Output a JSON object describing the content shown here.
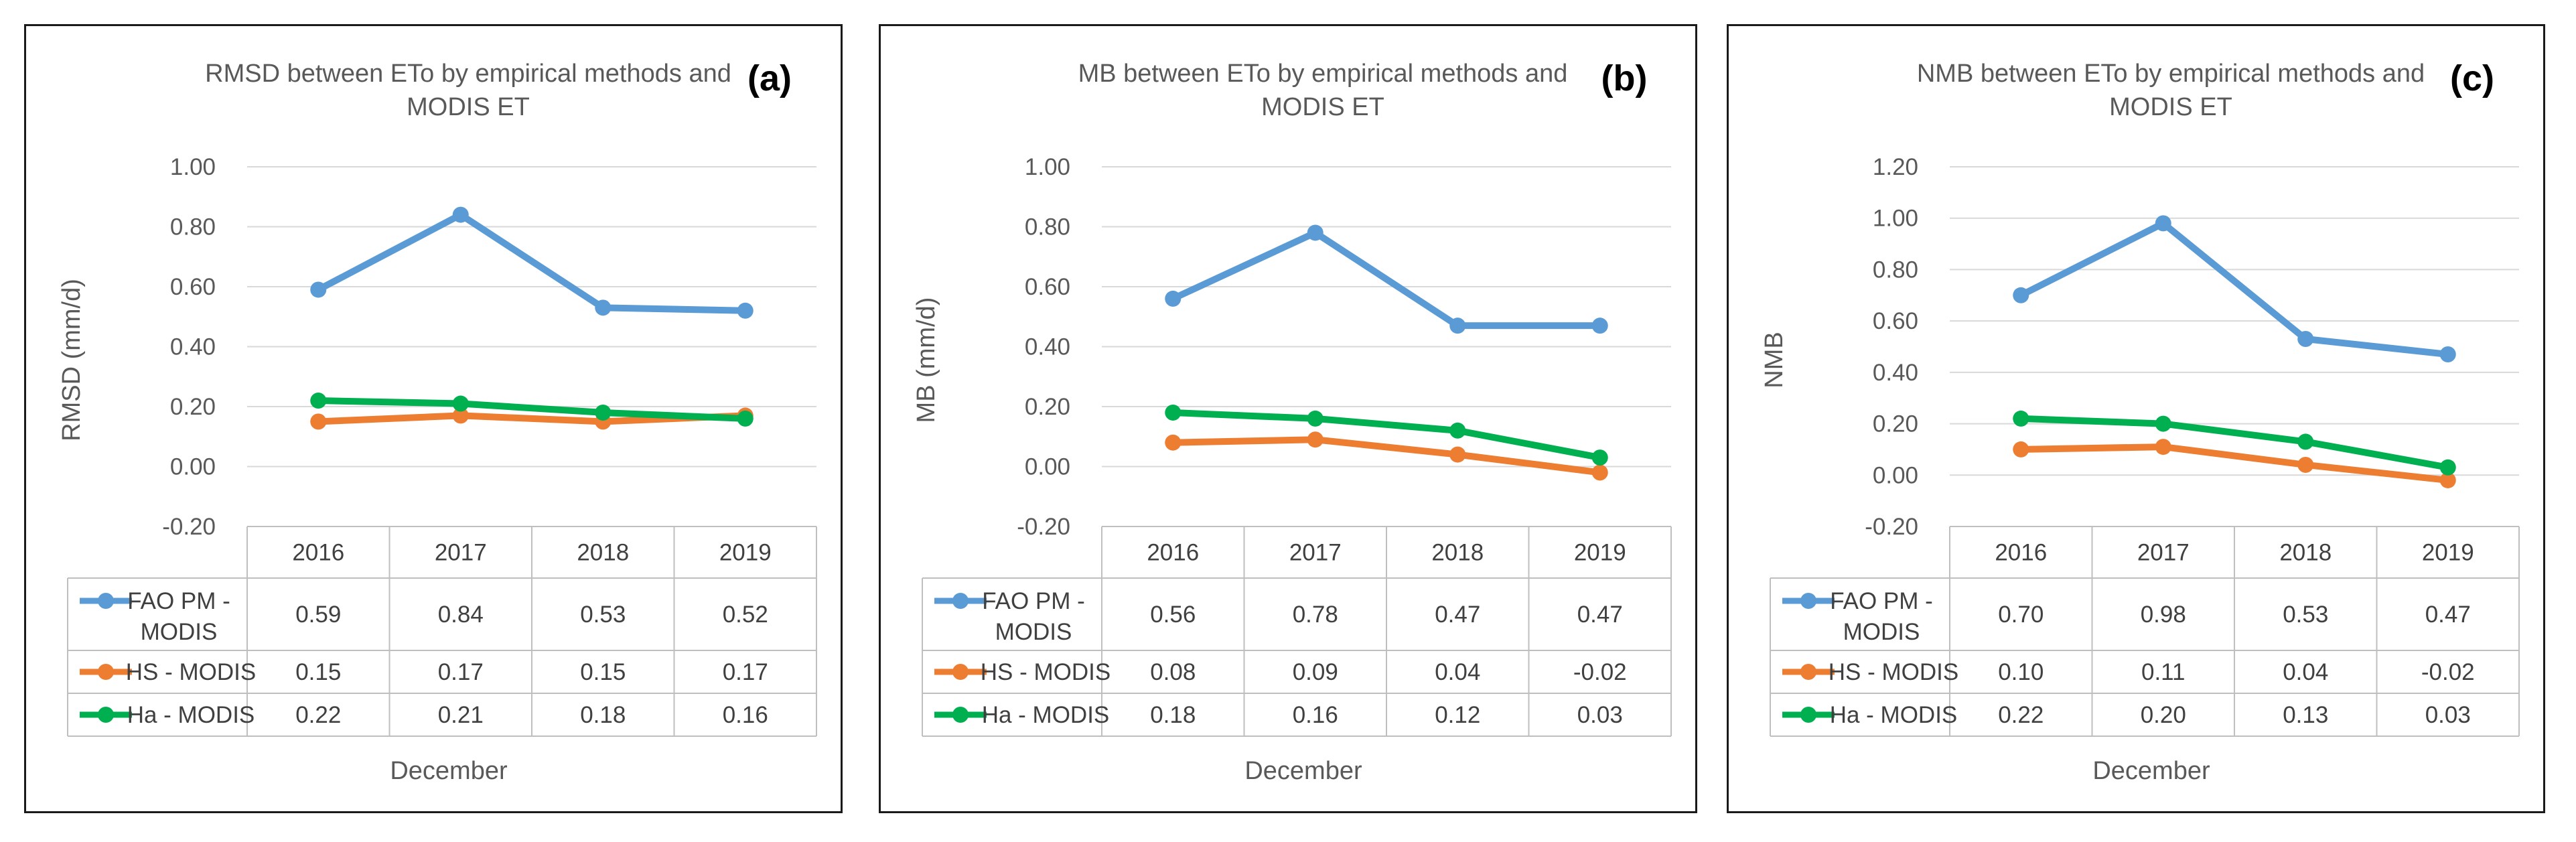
{
  "chart_data": [
    {
      "type": "line",
      "panel_label": "(a)",
      "title_lines": [
        "RMSD between ETo by empirical methods and",
        "MODIS ET"
      ],
      "ylabel": "RMSD (mm/d)",
      "xlabel": "December",
      "categories": [
        "2016",
        "2017",
        "2018",
        "2019"
      ],
      "yticks": [
        "1.00",
        "0.80",
        "0.60",
        "0.40",
        "0.20",
        "0.00",
        "-0.20"
      ],
      "ylim": [
        -0.2,
        1.0
      ],
      "grid": true,
      "series": [
        {
          "name_lines": [
            "FAO PM -",
            "MODIS"
          ],
          "color": "#5B9BD5",
          "values": [
            0.59,
            0.84,
            0.53,
            0.52
          ],
          "labels": [
            "0.59",
            "0.84",
            "0.53",
            "0.52"
          ]
        },
        {
          "name_lines": [
            "HS - MODIS"
          ],
          "color": "#ED7D31",
          "values": [
            0.15,
            0.17,
            0.15,
            0.17
          ],
          "labels": [
            "0.15",
            "0.17",
            "0.15",
            "0.17"
          ]
        },
        {
          "name_lines": [
            "Ha - MODIS"
          ],
          "color": "#00B050",
          "values": [
            0.22,
            0.21,
            0.18,
            0.16
          ],
          "labels": [
            "0.22",
            "0.21",
            "0.18",
            "0.16"
          ]
        }
      ]
    },
    {
      "type": "line",
      "panel_label": "(b)",
      "title_lines": [
        "MB between ETo by empirical methods and",
        "MODIS ET"
      ],
      "ylabel": "MB (mm/d)",
      "xlabel": "December",
      "categories": [
        "2016",
        "2017",
        "2018",
        "2019"
      ],
      "yticks": [
        "1.00",
        "0.80",
        "0.60",
        "0.40",
        "0.20",
        "0.00",
        "-0.20"
      ],
      "ylim": [
        -0.2,
        1.0
      ],
      "grid": true,
      "series": [
        {
          "name_lines": [
            "FAO PM -",
            "MODIS"
          ],
          "color": "#5B9BD5",
          "values": [
            0.56,
            0.78,
            0.47,
            0.47
          ],
          "labels": [
            "0.56",
            "0.78",
            "0.47",
            "0.47"
          ]
        },
        {
          "name_lines": [
            "HS - MODIS"
          ],
          "color": "#ED7D31",
          "values": [
            0.08,
            0.09,
            0.04,
            -0.02
          ],
          "labels": [
            "0.08",
            "0.09",
            "0.04",
            "-0.02"
          ]
        },
        {
          "name_lines": [
            "Ha - MODIS"
          ],
          "color": "#00B050",
          "values": [
            0.18,
            0.16,
            0.12,
            0.03
          ],
          "labels": [
            "0.18",
            "0.16",
            "0.12",
            "0.03"
          ]
        }
      ]
    },
    {
      "type": "line",
      "panel_label": "(c)",
      "title_lines": [
        "NMB between ETo by empirical methods and",
        "MODIS ET"
      ],
      "ylabel": "NMB",
      "xlabel": "December",
      "categories": [
        "2016",
        "2017",
        "2018",
        "2019"
      ],
      "yticks": [
        "1.20",
        "1.00",
        "0.80",
        "0.60",
        "0.40",
        "0.20",
        "0.00",
        "-0.20"
      ],
      "ylim": [
        -0.2,
        1.2
      ],
      "grid": true,
      "series": [
        {
          "name_lines": [
            "FAO PM -",
            "MODIS"
          ],
          "color": "#5B9BD5",
          "values": [
            0.7,
            0.98,
            0.53,
            0.47
          ],
          "labels": [
            "0.70",
            "0.98",
            "0.53",
            "0.47"
          ]
        },
        {
          "name_lines": [
            "HS - MODIS"
          ],
          "color": "#ED7D31",
          "values": [
            0.1,
            0.11,
            0.04,
            -0.02
          ],
          "labels": [
            "0.10",
            "0.11",
            "0.04",
            "-0.02"
          ]
        },
        {
          "name_lines": [
            "Ha - MODIS"
          ],
          "color": "#00B050",
          "values": [
            0.22,
            0.2,
            0.13,
            0.03
          ],
          "labels": [
            "0.22",
            "0.20",
            "0.13",
            "0.03"
          ]
        }
      ]
    }
  ]
}
